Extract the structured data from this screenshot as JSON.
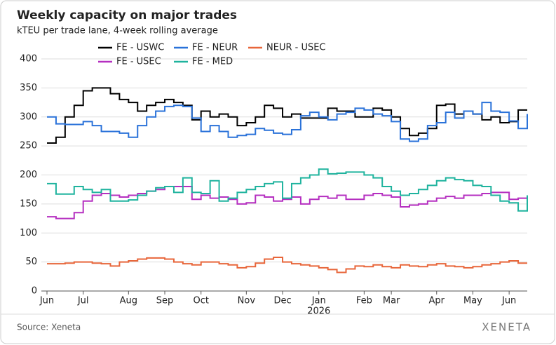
{
  "chart_data": {
    "type": "step-line",
    "title": "Weekly capacity on major trades",
    "subtitle": "kTEU per trade lane, 4-week rolling average",
    "source": "Source: Xeneta",
    "brand": "XENETA",
    "categories": [
      "Jun",
      null,
      null,
      null,
      "Jul",
      null,
      null,
      null,
      null,
      "Aug",
      null,
      null,
      null,
      "Sep",
      null,
      null,
      null,
      "Oct",
      null,
      null,
      null,
      null,
      "Nov",
      null,
      null,
      null,
      "Dec",
      null,
      null,
      null,
      "Jan",
      null,
      null,
      null,
      null,
      "Feb",
      null,
      null,
      "Mar",
      null,
      null,
      null,
      null,
      "Apr",
      null,
      null,
      null,
      "May",
      null,
      null,
      null,
      "Jun",
      null,
      null
    ],
    "category_sublabels": [
      null,
      null,
      null,
      null,
      null,
      null,
      null,
      null,
      null,
      null,
      null,
      null,
      null,
      null,
      null,
      null,
      null,
      null,
      null,
      null,
      null,
      null,
      null,
      null,
      null,
      null,
      null,
      null,
      null,
      null,
      "2026",
      null,
      null,
      null,
      null,
      null,
      null,
      null,
      null,
      null,
      null,
      null,
      null,
      null,
      null,
      null,
      null,
      null,
      null,
      null,
      null,
      null,
      null,
      null
    ],
    "ylim": [
      0,
      400
    ],
    "yticks": [
      0,
      50,
      100,
      150,
      200,
      250,
      300,
      350,
      400
    ],
    "grid": true,
    "series": [
      {
        "name": "FE - USWC",
        "color": "#000000",
        "values": [
          255,
          265,
          300,
          320,
          345,
          350,
          350,
          340,
          330,
          325,
          310,
          320,
          325,
          330,
          325,
          320,
          295,
          310,
          300,
          305,
          300,
          285,
          290,
          300,
          320,
          315,
          300,
          305,
          298,
          298,
          298,
          315,
          310,
          310,
          300,
          300,
          315,
          312,
          300,
          280,
          268,
          272,
          280,
          320,
          322,
          305,
          310,
          305,
          295,
          300,
          290,
          292,
          312,
          312
        ]
      },
      {
        "name": "FE - NEUR",
        "color": "#2a72d9",
        "values": [
          300,
          288,
          287,
          287,
          292,
          285,
          275,
          275,
          272,
          265,
          285,
          300,
          310,
          318,
          320,
          318,
          298,
          275,
          285,
          275,
          265,
          268,
          270,
          280,
          277,
          272,
          270,
          278,
          302,
          308,
          300,
          295,
          305,
          308,
          315,
          312,
          305,
          302,
          292,
          262,
          258,
          262,
          285,
          290,
          308,
          298,
          310,
          305,
          325,
          310,
          308,
          293,
          280,
          305
        ]
      },
      {
        "name": "NEUR - USEC",
        "color": "#e8663a",
        "values": [
          47,
          47,
          48,
          50,
          50,
          48,
          47,
          43,
          50,
          52,
          55,
          57,
          57,
          55,
          50,
          47,
          45,
          50,
          50,
          47,
          45,
          40,
          42,
          48,
          55,
          58,
          50,
          47,
          45,
          43,
          40,
          37,
          32,
          38,
          43,
          42,
          45,
          42,
          40,
          45,
          43,
          42,
          45,
          47,
          43,
          42,
          40,
          42,
          45,
          47,
          50,
          52,
          48,
          48
        ]
      },
      {
        "name": "FE - USEC",
        "color": "#b52fc0",
        "values": [
          128,
          125,
          125,
          135,
          155,
          165,
          168,
          165,
          162,
          165,
          168,
          172,
          175,
          180,
          180,
          180,
          158,
          165,
          160,
          162,
          158,
          150,
          152,
          165,
          162,
          155,
          158,
          162,
          150,
          158,
          163,
          160,
          165,
          158,
          158,
          165,
          168,
          165,
          162,
          145,
          148,
          150,
          155,
          160,
          163,
          160,
          165,
          165,
          168,
          170,
          170,
          158,
          160,
          163
        ]
      },
      {
        "name": "FE - MED",
        "color": "#1fb39e",
        "values": [
          185,
          167,
          167,
          180,
          175,
          170,
          175,
          155,
          155,
          157,
          165,
          172,
          178,
          180,
          170,
          195,
          170,
          168,
          190,
          155,
          160,
          170,
          175,
          180,
          185,
          188,
          160,
          185,
          195,
          200,
          210,
          202,
          203,
          205,
          205,
          200,
          195,
          180,
          172,
          165,
          168,
          175,
          182,
          190,
          195,
          192,
          190,
          182,
          180,
          165,
          155,
          152,
          138,
          165
        ]
      }
    ]
  }
}
